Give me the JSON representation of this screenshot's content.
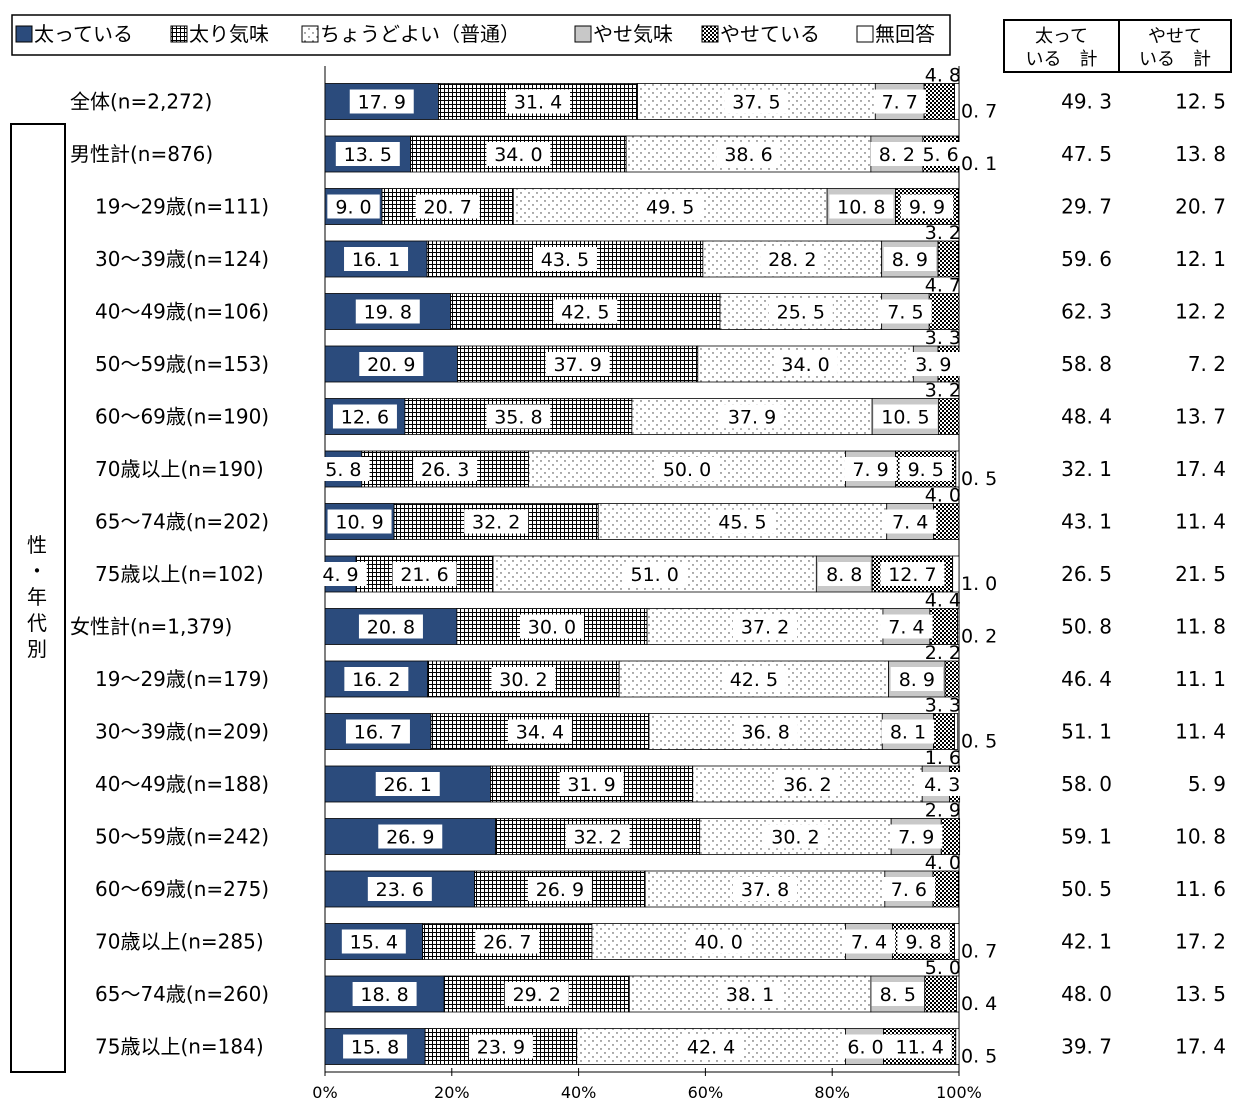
{
  "chart_data": {
    "type": "bar",
    "stacked": true,
    "orientation": "horizontal",
    "percent": true,
    "xlim": [
      0,
      100
    ],
    "x_ticks": [
      "0%",
      "20%",
      "40%",
      "60%",
      "80%",
      "100%"
    ],
    "legend_position": "top",
    "legend": [
      {
        "label": "太っている",
        "fill": "solid",
        "color": "#2b4b7c"
      },
      {
        "label": "太り気味",
        "fill": "grid",
        "color": "#000000"
      },
      {
        "label": "ちょうどよい（普通）",
        "fill": "dots",
        "color": "#000000"
      },
      {
        "label": "やせ気味",
        "fill": "solid",
        "color": "#c8c8c8"
      },
      {
        "label": "やせている",
        "fill": "checker",
        "color": "#000000"
      },
      {
        "label": "無回答",
        "fill": "solid",
        "color": "#ffffff"
      }
    ],
    "totals_headers": [
      {
        "line1": "太って",
        "line2": "いる　計"
      },
      {
        "line1": "やせて",
        "line2": "いる　計"
      }
    ],
    "side_group_label": [
      "性",
      "・",
      "年",
      "代",
      "別"
    ],
    "categories": [
      "全体(n=2,272)",
      "男性計(n=876)",
      "19～29歳(n=111)",
      "30～39歳(n=124)",
      "40～49歳(n=106)",
      "50～59歳(n=153)",
      "60～69歳(n=190)",
      "70歳以上(n=190)",
      "65～74歳(n=202)",
      "75歳以上(n=102)",
      "女性計(n=1,379)",
      "19～29歳(n=179)",
      "30～39歳(n=209)",
      "40～49歳(n=188)",
      "50～59歳(n=242)",
      "60～69歳(n=275)",
      "70歳以上(n=285)",
      "65～74歳(n=260)",
      "75歳以上(n=184)"
    ],
    "category_indent": [
      0,
      0,
      1,
      1,
      1,
      1,
      1,
      1,
      1,
      1,
      0,
      1,
      1,
      1,
      1,
      1,
      1,
      1,
      1
    ],
    "series": [
      {
        "name": "太っている",
        "values": [
          17.9,
          13.5,
          9.0,
          16.1,
          19.8,
          20.9,
          12.6,
          5.8,
          10.9,
          4.9,
          20.8,
          16.2,
          16.7,
          26.1,
          26.9,
          23.6,
          15.4,
          18.8,
          15.8
        ]
      },
      {
        "name": "太り気味",
        "values": [
          31.4,
          34.0,
          20.7,
          43.5,
          42.5,
          37.9,
          35.8,
          26.3,
          32.2,
          21.6,
          30.0,
          30.2,
          34.4,
          31.9,
          32.2,
          26.9,
          26.7,
          29.2,
          23.9
        ]
      },
      {
        "name": "ちょうどよい（普通）",
        "values": [
          37.5,
          38.6,
          49.5,
          28.2,
          25.5,
          34.0,
          37.9,
          50.0,
          45.5,
          51.0,
          37.2,
          42.5,
          36.8,
          36.2,
          30.2,
          37.8,
          40.0,
          38.1,
          42.4
        ]
      },
      {
        "name": "やせ気味",
        "values": [
          7.7,
          8.2,
          10.8,
          8.9,
          7.5,
          3.9,
          10.5,
          7.9,
          7.4,
          8.8,
          7.4,
          8.9,
          8.1,
          4.3,
          7.9,
          7.6,
          7.4,
          8.5,
          6.0
        ]
      },
      {
        "name": "やせている",
        "values": [
          4.8,
          5.6,
          9.9,
          3.2,
          4.7,
          3.3,
          3.2,
          9.5,
          4.0,
          12.7,
          4.4,
          2.2,
          3.3,
          1.6,
          2.9,
          4.0,
          9.8,
          5.0,
          11.4
        ]
      },
      {
        "name": "無回答",
        "values": [
          0.7,
          0.1,
          0,
          0,
          0,
          0,
          0,
          0.5,
          0,
          1.0,
          0.2,
          0,
          0.5,
          0,
          0,
          0,
          0.7,
          0.4,
          0.5
        ]
      }
    ],
    "totals": [
      {
        "name": "太っている計",
        "values": [
          "49.3",
          "47.5",
          "29.7",
          "59.6",
          "62.3",
          "58.8",
          "48.4",
          "32.1",
          "43.1",
          "26.5",
          "50.8",
          "46.4",
          "51.1",
          "58.0",
          "59.1",
          "50.5",
          "42.1",
          "48.0",
          "39.7"
        ]
      },
      {
        "name": "やせている計",
        "values": [
          "12.5",
          "13.8",
          "20.7",
          "12.1",
          "12.2",
          "7.2",
          "13.7",
          "17.4",
          "11.4",
          "21.5",
          "11.8",
          "11.1",
          "11.4",
          "5.9",
          "10.8",
          "11.6",
          "17.2",
          "13.5",
          "17.4"
        ]
      }
    ]
  }
}
